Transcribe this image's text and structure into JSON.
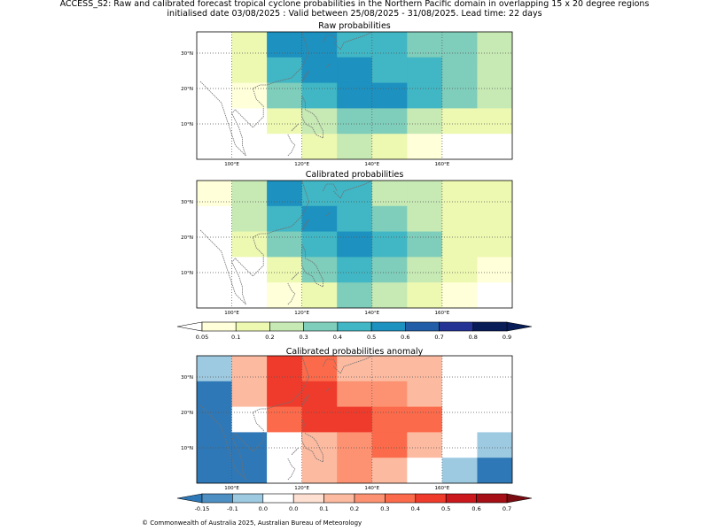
{
  "header": {
    "line1": "ACCESS_S2: Raw and calibrated forecast tropical cyclone probabilities in the Northern Pacific domain in overlapping 15 x 20 degree regions",
    "line2": "initialised date 03/08/2025 :  Valid between 25/08/2025 - 31/08/2025. Lead time: 22 days"
  },
  "panels": [
    {
      "id": "raw",
      "title": "Raw probabilities",
      "palette": "prob",
      "grid": [
        [
          null,
          0.1,
          0.5,
          0.5,
          0.4,
          0.4,
          0.3,
          0.3,
          0.2
        ],
        [
          null,
          0.1,
          0.4,
          0.5,
          0.5,
          0.4,
          0.4,
          0.3,
          0.2
        ],
        [
          null,
          0.05,
          0.3,
          0.4,
          0.5,
          0.5,
          0.4,
          0.3,
          0.2
        ],
        [
          null,
          null,
          0.1,
          0.2,
          0.3,
          0.3,
          0.2,
          0.1,
          0.1
        ],
        [
          null,
          null,
          null,
          0.1,
          0.2,
          0.1,
          0.05,
          null,
          null
        ]
      ]
    },
    {
      "id": "cal",
      "title": "Calibrated probabilities",
      "palette": "prob",
      "grid": [
        [
          0.05,
          0.2,
          0.5,
          0.4,
          0.4,
          0.2,
          0.2,
          0.1,
          0.1
        ],
        [
          null,
          0.2,
          0.4,
          0.5,
          0.4,
          0.3,
          0.2,
          0.1,
          0.1
        ],
        [
          null,
          0.1,
          0.3,
          0.4,
          0.5,
          0.4,
          0.3,
          0.1,
          0.1
        ],
        [
          null,
          null,
          0.1,
          0.3,
          0.4,
          0.3,
          0.2,
          0.1,
          0.05
        ],
        [
          null,
          null,
          0.05,
          0.1,
          0.3,
          0.2,
          0.1,
          0.05,
          null
        ]
      ]
    },
    {
      "id": "anom",
      "title": "Calibrated probabilities anomaly",
      "palette": "anom",
      "grid": [
        [
          -0.1,
          0.1,
          0.4,
          0.3,
          0.1,
          0.1,
          0.1,
          null,
          null
        ],
        [
          -0.15,
          0.1,
          0.4,
          0.4,
          0.2,
          0.2,
          0.1,
          null,
          null
        ],
        [
          -0.15,
          0.0,
          0.3,
          0.4,
          0.4,
          0.3,
          0.3,
          null,
          null
        ],
        [
          -0.15,
          -0.15,
          null,
          0.1,
          0.2,
          0.3,
          0.1,
          null,
          -0.1
        ],
        [
          -0.15,
          -0.15,
          null,
          0.1,
          0.2,
          0.1,
          null,
          -0.1,
          -0.15
        ]
      ]
    }
  ],
  "map_axes": {
    "lon_labels": [
      "100°E",
      "120°E",
      "140°E",
      "160°E"
    ],
    "lat_labels": [
      "30°N",
      "20°N",
      "10°N"
    ]
  },
  "colorbars": {
    "prob": {
      "ticks": [
        "0.05",
        "0.1",
        "0.2",
        "0.3",
        "0.4",
        "0.5",
        "0.6",
        "0.7",
        "0.8",
        "0.9"
      ],
      "colors": [
        "#ffffd9",
        "#edf8b1",
        "#c7e9b4",
        "#7fcdbb",
        "#41b6c4",
        "#1d91c0",
        "#225ea8",
        "#253494",
        "#081d58"
      ]
    },
    "anom": {
      "ticks": [
        "-0.15",
        "-0.1",
        "0.0",
        "0.0",
        "0.1",
        "0.2",
        "0.3",
        "0.4",
        "0.5",
        "0.6",
        "0.7"
      ],
      "colors": [
        "#4d8fc2",
        "#9ecae1",
        "#ffffff",
        "#fee0d2",
        "#fcbba1",
        "#fc9272",
        "#fb6a4a",
        "#ef3b2c",
        "#cb181d",
        "#a50f15"
      ],
      "under": "#2f78b7",
      "over": "#7a0c11"
    }
  },
  "footer": {
    "copyright": "© Commonwealth of Australia 2025, Australian Bureau of Meteorology"
  }
}
